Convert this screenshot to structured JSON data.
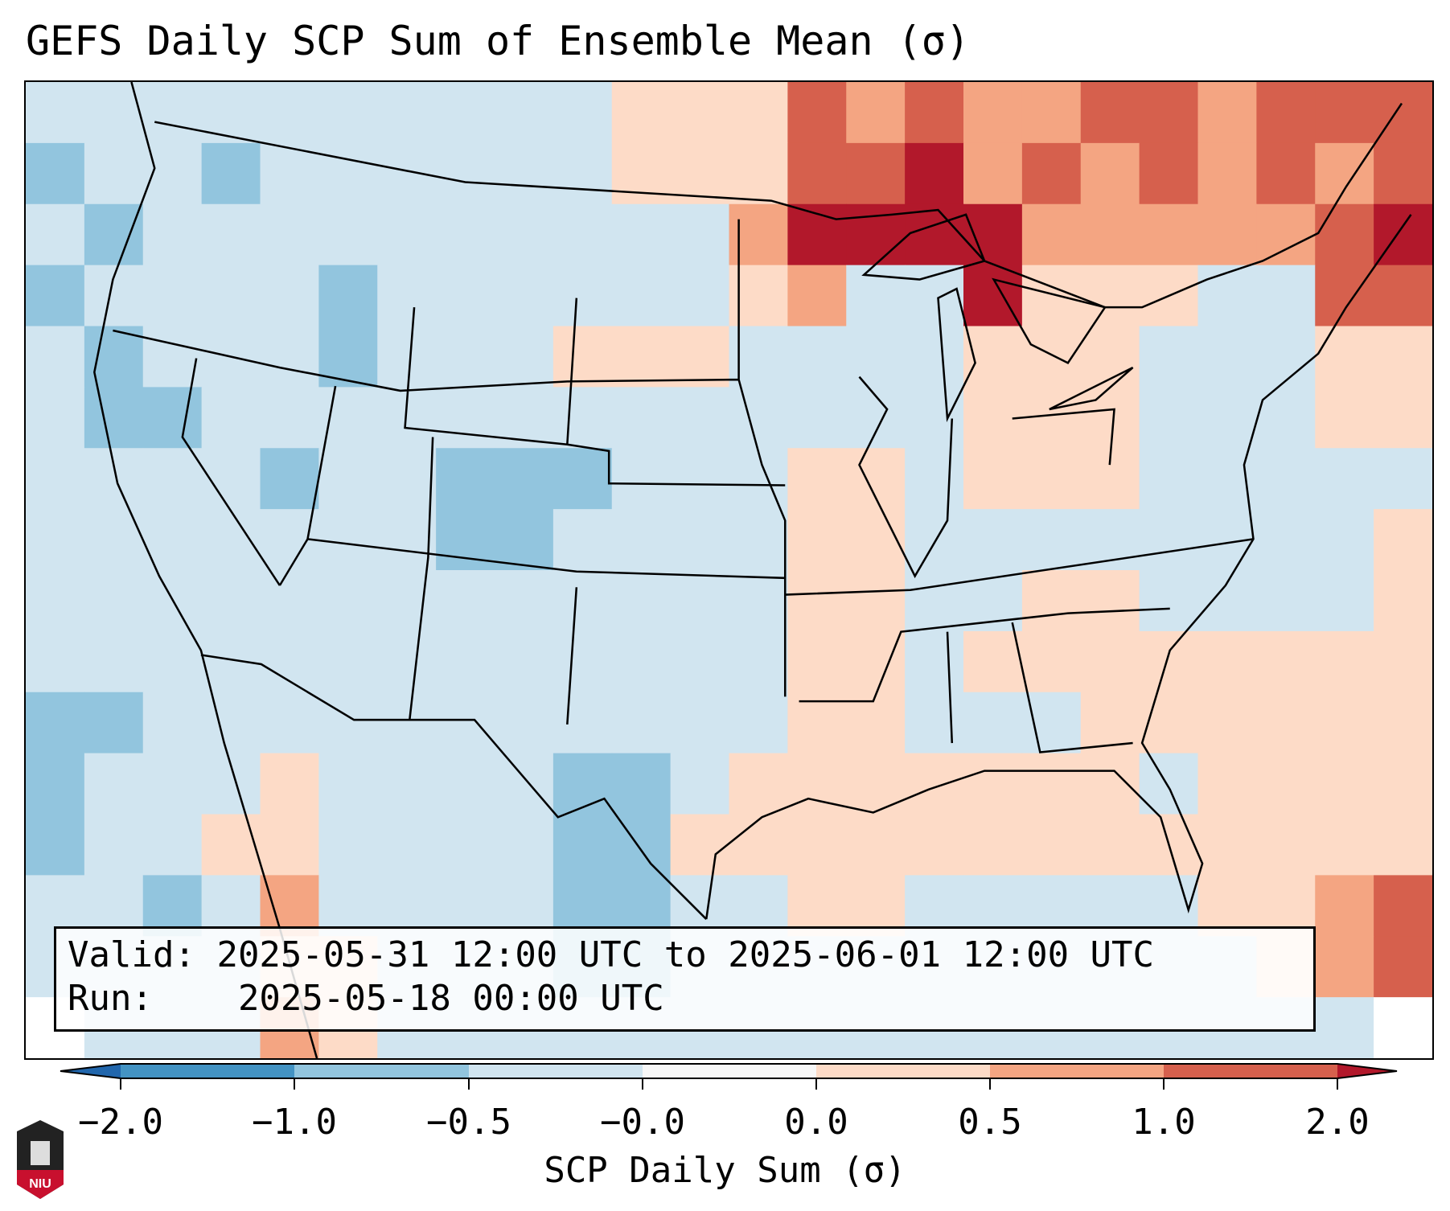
{
  "chart_data": {
    "type": "heatmap",
    "title": "GEFS Daily SCP Sum of Ensemble Mean (σ)",
    "colorbar": {
      "label": "SCP Daily Sum (σ)",
      "tick_labels": [
        "−2.0",
        "−1.0",
        "−0.5",
        "−0.0",
        "0.0",
        "0.5",
        "1.0",
        "2.0"
      ],
      "bounds": [
        -2.0,
        -1.0,
        -0.5,
        -0.0,
        0.0,
        0.5,
        1.0,
        2.0
      ],
      "colors": [
        "#4393c3",
        "#92c5de",
        "#d1e5f0",
        "#f7f7f7",
        "#fddbc7",
        "#f4a582",
        "#d6604d"
      ],
      "extend_min_color": "#2166ac",
      "extend_max_color": "#b2182b",
      "extend": "both"
    },
    "grid_codes": {
      "B": -0.75,
      "L": -0.25,
      "W": 0.0,
      "P": 0.25,
      "O": 0.75,
      "R": 1.5,
      "D": 2.5
    },
    "code_colors": {
      "B": "#92c5de",
      "L": "#d1e5f0",
      "W": "#ffffff",
      "P": "#fddbc7",
      "O": "#f4a582",
      "R": "#d6604d",
      "D": "#b2182b"
    },
    "approx_field_rows": [
      "LLLLLLLLLLPPPROROORRORRR",
      "BLLBLLLLLLPPPRRDOROROROR",
      "LBLLLLLLLLLLODDDDOOOOORD",
      "BLLLLBLLLLLLPOLLDPPPLLRR",
      "LBLLLBLLLPPPLLLLPPPLLLPP",
      "LBBLLLLLLLLLLLLLPPPLLLPP",
      "LLLLBLLBBBLLLPPLPPPLLLLL",
      "LLLLLLLBBLLLLPPLLLLLLLLP",
      "LLLLLLLLLLLLLPPLLPPLLLLP",
      "LLLLLLLLLLLLLPPLPPPPPPPP",
      "BBLLLLLLLLLLLPPLLLPPPPPP",
      "BLLLPLLLLBBLPPPPPPPLPPPP",
      "BLLPPLLLLBBPPPPPPPPPPPPP",
      "LLBLOLLLLBBLLPPLLLLLPPOR",
      "LLLLPPLLLBBLLLLLLLLLLPOR",
      "WLLLOPLLLLLLLLLLLLLLLLLW"
    ]
  },
  "info": {
    "valid_label": "Valid:",
    "valid_value": "2025-05-31 12:00 UTC to 2025-06-01 12:00 UTC",
    "run_label": "Run:",
    "run_value": "2025-05-18 00:00 UTC"
  },
  "logo": {
    "text": "NIU"
  }
}
